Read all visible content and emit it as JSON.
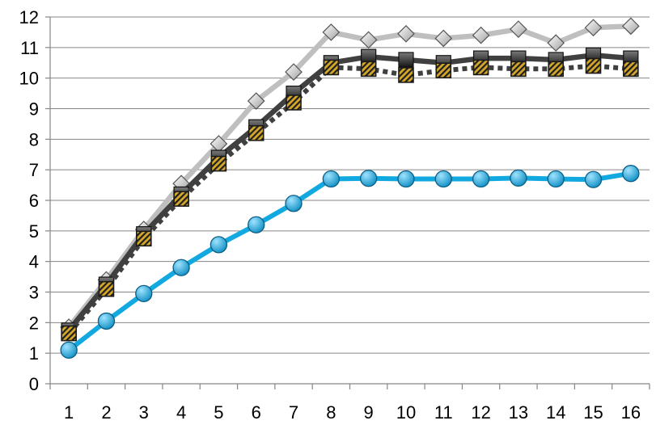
{
  "chart_data": {
    "type": "line",
    "title": "",
    "xlabel": "",
    "ylabel": "",
    "x": [
      1,
      2,
      3,
      4,
      5,
      6,
      7,
      8,
      9,
      10,
      11,
      12,
      13,
      14,
      15,
      16
    ],
    "ylim": [
      0,
      12
    ],
    "yticks": [
      0,
      1,
      2,
      3,
      4,
      5,
      6,
      7,
      8,
      9,
      10,
      11,
      12
    ],
    "grid": "horizontal",
    "legend": "none",
    "series": [
      {
        "key": "light-gray-diamond",
        "color": "#bfbfbf",
        "marker": "diamond",
        "values": [
          1.85,
          3.4,
          5.05,
          6.55,
          7.85,
          9.25,
          10.2,
          11.5,
          11.25,
          11.45,
          11.3,
          11.4,
          11.6,
          11.15,
          11.65,
          11.7
        ]
      },
      {
        "key": "dark-gray-square",
        "color": "#404040",
        "marker": "square",
        "values": [
          1.75,
          3.25,
          4.9,
          6.2,
          7.4,
          8.4,
          9.5,
          10.5,
          10.7,
          10.6,
          10.5,
          10.65,
          10.65,
          10.6,
          10.75,
          10.65
        ]
      },
      {
        "key": "dotted-gold-square",
        "color": "#404040",
        "marker": "hatched-square",
        "dashed": true,
        "values": [
          1.65,
          3.1,
          4.75,
          6.05,
          7.2,
          8.2,
          9.2,
          10.35,
          10.3,
          10.1,
          10.25,
          10.35,
          10.3,
          10.3,
          10.4,
          10.3
        ]
      },
      {
        "key": "blue-circle",
        "color": "#12a9e1",
        "marker": "circle",
        "values": [
          1.1,
          2.05,
          2.95,
          3.8,
          4.55,
          5.2,
          5.9,
          6.7,
          6.72,
          6.7,
          6.7,
          6.7,
          6.73,
          6.7,
          6.68,
          6.88
        ]
      }
    ]
  }
}
